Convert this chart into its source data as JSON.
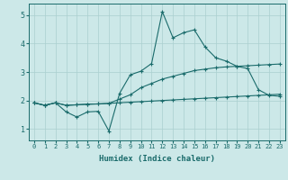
{
  "xlabel": "Humidex (Indice chaleur)",
  "bg_color": "#cce8e8",
  "line_color": "#1a6b6b",
  "grid_color": "#aacfcf",
  "xlim": [
    -0.5,
    23.5
  ],
  "ylim": [
    0.6,
    5.4
  ],
  "xticks": [
    0,
    1,
    2,
    3,
    4,
    5,
    6,
    7,
    8,
    9,
    10,
    11,
    12,
    13,
    14,
    15,
    16,
    17,
    18,
    19,
    20,
    21,
    22,
    23
  ],
  "yticks": [
    1,
    2,
    3,
    4,
    5
  ],
  "line1_x": [
    0,
    1,
    2,
    3,
    4,
    5,
    6,
    7,
    8,
    9,
    10,
    11,
    12,
    13,
    14,
    15,
    16,
    17,
    18,
    19,
    20,
    21,
    22,
    23
  ],
  "line1_y": [
    1.92,
    1.83,
    1.92,
    1.83,
    1.85,
    1.87,
    1.88,
    1.9,
    1.92,
    1.94,
    1.96,
    1.98,
    2.0,
    2.02,
    2.04,
    2.06,
    2.08,
    2.1,
    2.12,
    2.14,
    2.16,
    2.18,
    2.2,
    2.22
  ],
  "line2_x": [
    0,
    1,
    2,
    3,
    4,
    5,
    6,
    7,
    8,
    9,
    10,
    11,
    12,
    13,
    14,
    15,
    16,
    17,
    18,
    19,
    20,
    21,
    22,
    23
  ],
  "line2_y": [
    1.92,
    1.83,
    1.92,
    1.83,
    1.85,
    1.87,
    1.88,
    1.9,
    2.05,
    2.2,
    2.45,
    2.6,
    2.75,
    2.85,
    2.95,
    3.05,
    3.1,
    3.15,
    3.18,
    3.2,
    3.22,
    3.24,
    3.26,
    3.28
  ],
  "line3_x": [
    0,
    1,
    2,
    3,
    4,
    5,
    6,
    7,
    8,
    9,
    10,
    11,
    12,
    13,
    14,
    15,
    16,
    17,
    18,
    19,
    20,
    21,
    22,
    23
  ],
  "line3_y": [
    1.92,
    1.83,
    1.92,
    1.6,
    1.42,
    1.6,
    1.62,
    0.93,
    2.25,
    2.9,
    3.03,
    3.3,
    5.12,
    4.2,
    4.38,
    4.48,
    3.88,
    3.5,
    3.38,
    3.2,
    3.12,
    2.38,
    2.18,
    2.15
  ]
}
